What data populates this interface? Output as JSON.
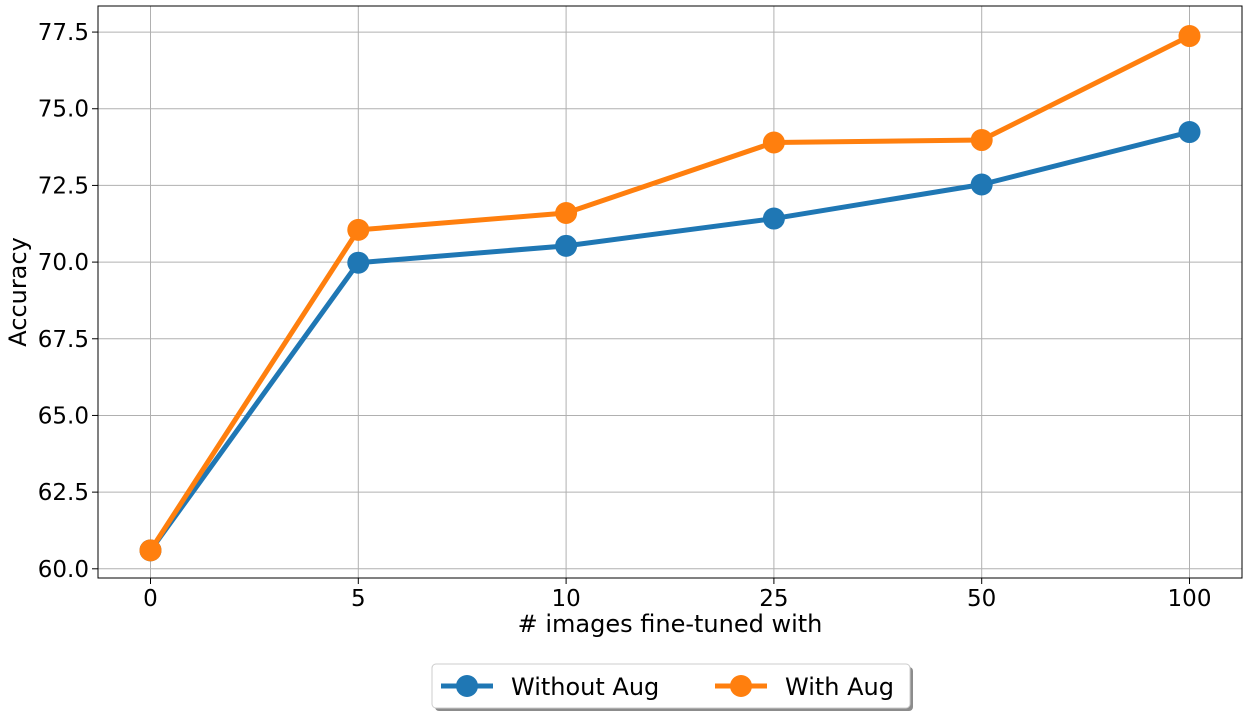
{
  "chart_data": {
    "type": "line",
    "categories": [
      "0",
      "5",
      "10",
      "25",
      "50",
      "100"
    ],
    "series": [
      {
        "name": "Without Aug",
        "color": "#1f77b4",
        "values": [
          60.6,
          69.98,
          70.53,
          71.42,
          72.53,
          74.24
        ]
      },
      {
        "name": "With Aug",
        "color": "#ff7f0e",
        "values": [
          60.6,
          71.05,
          71.6,
          73.9,
          73.98,
          77.37
        ]
      }
    ],
    "title": "",
    "xlabel": "# images fine-tuned with",
    "ylabel": "Accuracy",
    "ylim": [
      59.7,
      78.35
    ],
    "yticks": [
      "60.0",
      "62.5",
      "65.0",
      "67.5",
      "70.0",
      "72.5",
      "75.0",
      "77.5"
    ],
    "grid": true,
    "legend_position": "bottom-center"
  }
}
